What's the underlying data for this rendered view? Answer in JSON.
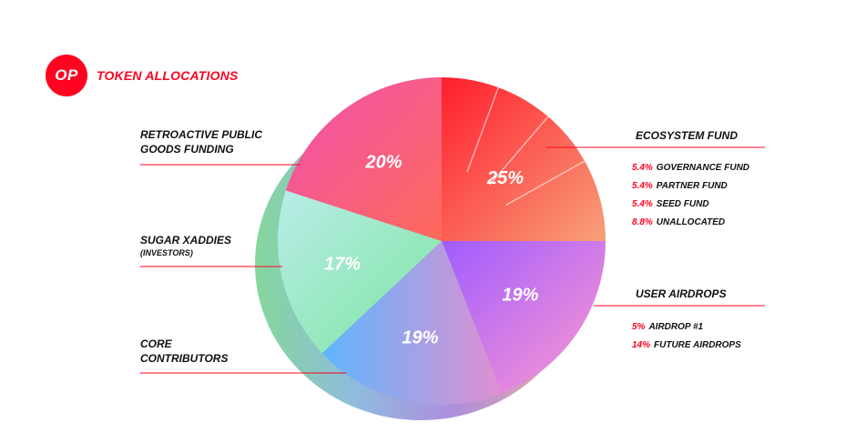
{
  "header": {
    "logo_text": "OP",
    "title": "TOKEN ALLOCATIONS"
  },
  "colors": {
    "brand": "#ff0420",
    "leader": "#ff0420"
  },
  "chart_data": {
    "type": "pie",
    "title": "TOKEN ALLOCATIONS",
    "slices": [
      {
        "label": "ECOSYSTEM FUND",
        "value": 25,
        "display": "25%",
        "colors": [
          "#ff1e2d",
          "#f7a07a"
        ]
      },
      {
        "label": "USER AIRDROPS",
        "value": 19,
        "display": "19%",
        "colors": [
          "#a05cff",
          "#ff9ad0"
        ]
      },
      {
        "label": "CORE CONTRIBUTORS",
        "value": 19,
        "display": "19%",
        "colors": [
          "#5fb6ff",
          "#e08fd0"
        ]
      },
      {
        "label": "SUGAR XADDIES (INVESTORS)",
        "value": 17,
        "display": "17%",
        "colors": [
          "#b9ece8",
          "#7ce6a0"
        ]
      },
      {
        "label": "RETROACTIVE PUBLIC GOODS FUNDING",
        "value": 20,
        "display": "20%",
        "colors": [
          "#ff5a6a",
          "#f05aa8"
        ]
      }
    ]
  },
  "labels": {
    "ecosystem": {
      "title": "ECOSYSTEM FUND"
    },
    "ecosystem_items": [
      {
        "pct": "5.4%",
        "name": "GOVERNANCE FUND"
      },
      {
        "pct": "5.4%",
        "name": "PARTNER FUND"
      },
      {
        "pct": "5.4%",
        "name": "SEED FUND"
      },
      {
        "pct": "8.8%",
        "name": "UNALLOCATED"
      }
    ],
    "airdrops": {
      "title": "USER AIRDROPS"
    },
    "airdrop_items": [
      {
        "pct": "5%",
        "name": "AIRDROP #1"
      },
      {
        "pct": "14%",
        "name": "FUTURE AIRDROPS"
      }
    ],
    "retro": {
      "line1": "RETROACTIVE PUBLIC",
      "line2": "GOODS FUNDING"
    },
    "sugar": {
      "line1": "SUGAR XADDIES",
      "line2": "(INVESTORS)"
    },
    "core": {
      "line1": "CORE",
      "line2": "CONTRIBUTORS"
    }
  }
}
